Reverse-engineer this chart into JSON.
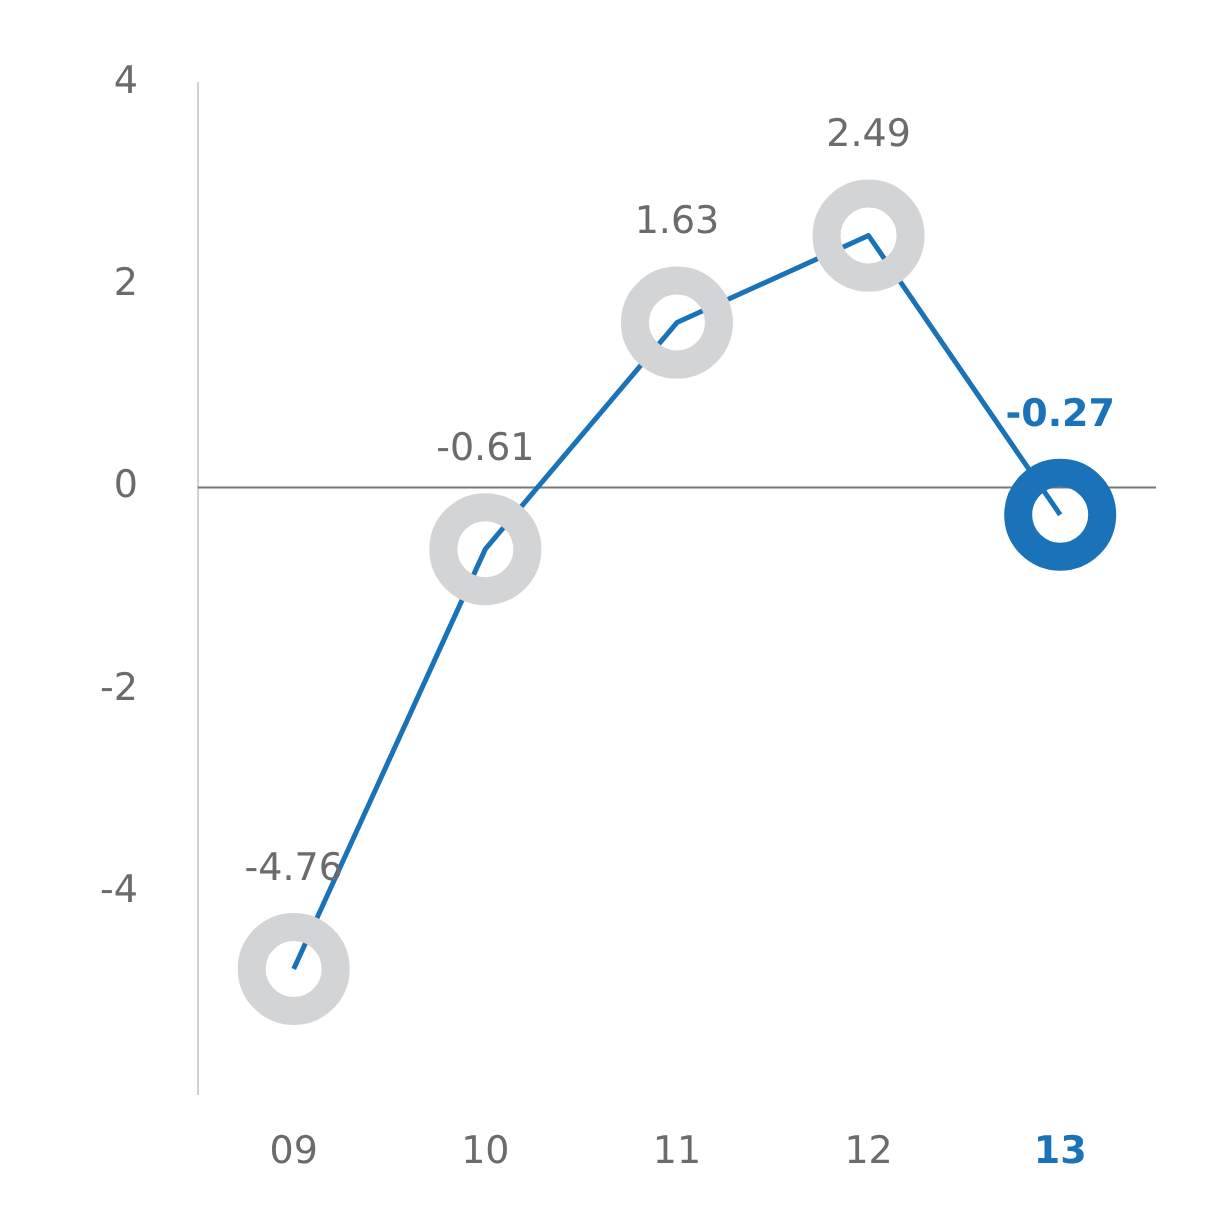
{
  "chart_data": {
    "type": "line",
    "categories": [
      "09",
      "10",
      "11",
      "12",
      "13"
    ],
    "series": [
      {
        "color": "#1a73b8",
        "values": [
          -4.76,
          -0.61,
          1.63,
          2.49,
          -0.27
        ],
        "colors": [
          "#d3d4d6",
          "#d3d4d6",
          "#d3d4d6",
          "#d3d4d6",
          "#1a73b8"
        ]
      }
    ],
    "ylim": [
      -6,
      4
    ],
    "yticks": [
      -4,
      -2,
      0,
      2,
      4
    ],
    "grid": false,
    "legend": false,
    "marker": "circle",
    "line_style": "solid",
    "data_labels": true,
    "ref_lines": [
      {
        "axis": "y",
        "value": 0,
        "color": "#777777"
      }
    ]
  }
}
